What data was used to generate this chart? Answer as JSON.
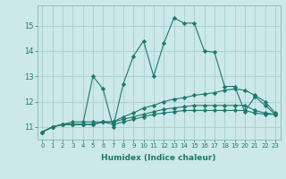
{
  "xlabel": "Humidex (Indice chaleur)",
  "x": [
    0,
    1,
    2,
    3,
    4,
    5,
    6,
    7,
    8,
    9,
    10,
    11,
    12,
    13,
    14,
    15,
    16,
    17,
    18,
    19,
    20,
    21,
    22,
    23
  ],
  "series": [
    [
      10.8,
      11.0,
      11.1,
      11.1,
      11.1,
      13.0,
      12.5,
      11.0,
      12.7,
      13.8,
      14.4,
      13.0,
      14.3,
      15.3,
      15.1,
      15.1,
      14.0,
      13.95,
      12.6,
      12.6,
      11.6,
      12.2,
      11.85,
      11.5
    ],
    [
      10.8,
      11.0,
      11.1,
      11.2,
      11.2,
      11.2,
      11.2,
      11.2,
      11.4,
      11.55,
      11.75,
      11.85,
      12.0,
      12.1,
      12.15,
      12.25,
      12.3,
      12.35,
      12.45,
      12.5,
      12.45,
      12.25,
      12.0,
      11.55
    ],
    [
      10.8,
      11.0,
      11.1,
      11.1,
      11.1,
      11.1,
      11.2,
      11.2,
      11.3,
      11.4,
      11.5,
      11.6,
      11.7,
      11.75,
      11.8,
      11.85,
      11.85,
      11.85,
      11.85,
      11.85,
      11.85,
      11.65,
      11.55,
      11.5
    ],
    [
      10.8,
      11.0,
      11.1,
      11.1,
      11.1,
      11.1,
      11.2,
      11.1,
      11.2,
      11.3,
      11.4,
      11.5,
      11.55,
      11.6,
      11.65,
      11.65,
      11.65,
      11.65,
      11.65,
      11.65,
      11.65,
      11.55,
      11.5,
      11.5
    ]
  ],
  "line_color": "#1a7a6a",
  "bg_color": "#cce8e8",
  "grid_color": "#a8cece",
  "ylim": [
    10.5,
    15.8
  ],
  "yticks": [
    11,
    12,
    13,
    14,
    15
  ],
  "xticks": [
    0,
    1,
    2,
    3,
    4,
    5,
    6,
    7,
    8,
    9,
    10,
    11,
    12,
    13,
    14,
    15,
    16,
    17,
    18,
    19,
    20,
    21,
    22,
    23
  ]
}
